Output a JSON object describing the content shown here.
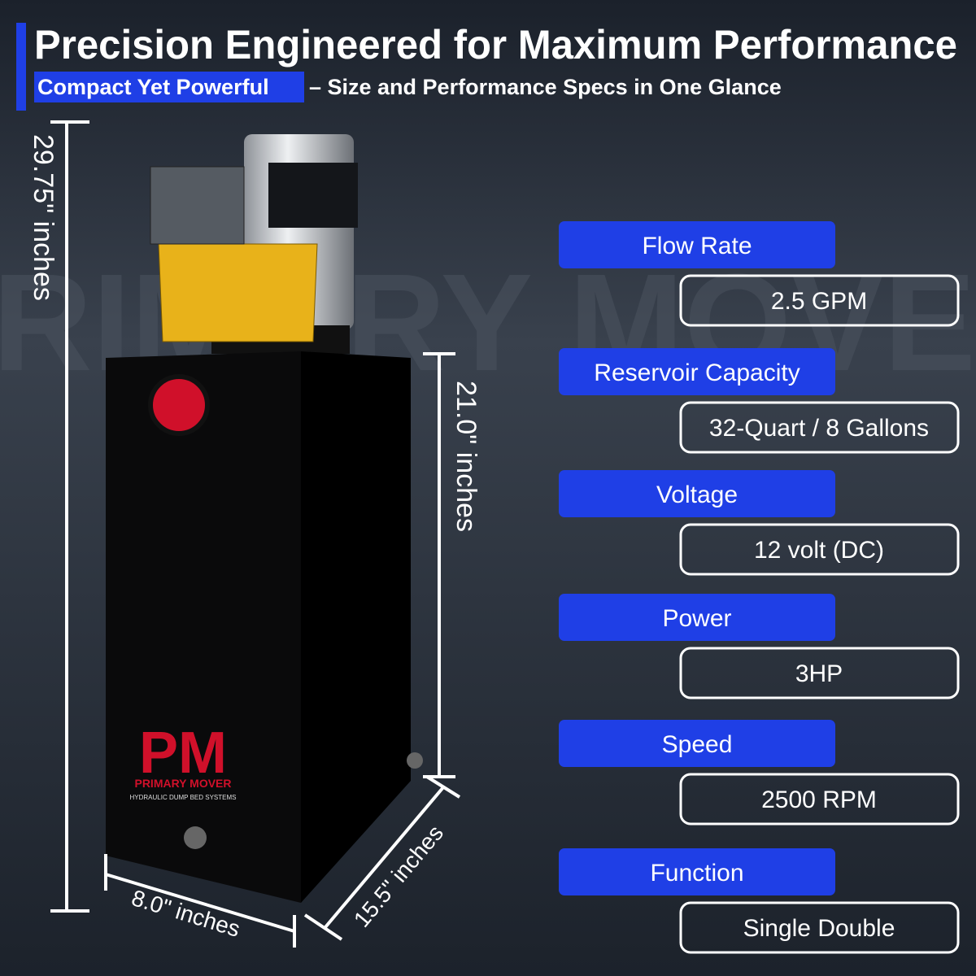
{
  "header": {
    "title": "Precision Engineered for Maximum Performance",
    "subtitle_highlight": "Compact Yet Powerful",
    "subtitle_rest": "– Size and Performance Specs in One Glance"
  },
  "watermark": "PRIMARY MOVER",
  "dimensions": {
    "height_total": "29.75\" inches",
    "height_tank": "21.0\" inches",
    "width": "8.0\" inches",
    "depth": "15.5\" inches"
  },
  "logo": {
    "mark": "PM",
    "name": "PRIMARY MOVER",
    "tagline": "HYDRAULIC DUMP BED SYSTEMS"
  },
  "specs": [
    {
      "label": "Flow Rate",
      "value": "2.5 GPM"
    },
    {
      "label": "Reservoir Capacity",
      "value": "32-Quart / 8 Gallons"
    },
    {
      "label": "Voltage",
      "value": "12 volt (DC)"
    },
    {
      "label": "Power",
      "value": "3HP"
    },
    {
      "label": "Speed",
      "value": "2500 RPM"
    },
    {
      "label": "Function",
      "value": "Single Double"
    }
  ]
}
